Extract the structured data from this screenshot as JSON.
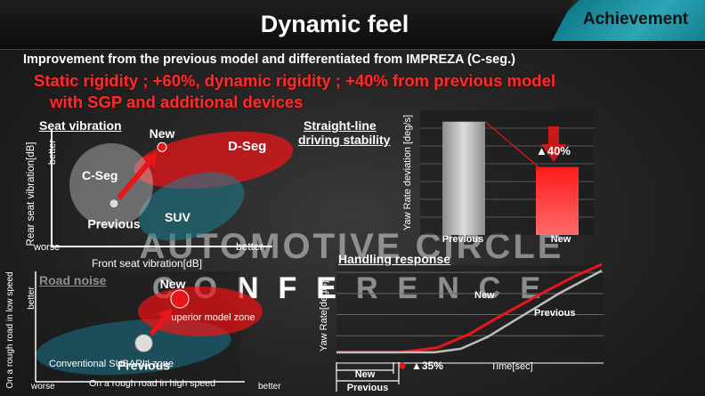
{
  "header": {
    "title": "Dynamic feel",
    "badge": "Achievement",
    "subtitle": "Improvement from the previous model  and differentiated from IMPREZA (C-seg.)",
    "highlight_line1": "Static rigidity ; +60%, dynamic rigidity ; +40% from previous model",
    "highlight_line2": "with SGP and additional devices"
  },
  "watermark": {
    "line1": "AUTOMOTIVE CIRCLE",
    "line2": "CONFERENCE"
  },
  "colors": {
    "new": "#e8161a",
    "previous": "#bdbdbd",
    "accent": "#1b9aaa"
  },
  "chart_data": [
    {
      "type": "scatter",
      "title": "Seat vibration",
      "xlabel": "Front seat vibration[dB]",
      "ylabel": "Rear seat vibration[dB]",
      "x_low_label": "worse",
      "x_high_label": "better",
      "y_high_label": "better",
      "regions": [
        "C-Seg",
        "D-Seg",
        "SUV"
      ],
      "points": [
        {
          "label": "Previous",
          "x": 0.35,
          "y": 0.38
        },
        {
          "label": "New",
          "x": 0.62,
          "y": 0.88
        }
      ]
    },
    {
      "type": "bar",
      "title": "Straight-line driving stability",
      "ylabel": "Yaw Rate deviation [deg/s]",
      "categories": [
        "Previous",
        "New"
      ],
      "values": [
        100,
        60
      ],
      "ylim": [
        0,
        110
      ],
      "annotation": "▲40%",
      "grid": true
    },
    {
      "type": "scatter",
      "title": "Road noise",
      "xlabel": "On a rough road in high speed",
      "ylabel": "On a rough road in low speed",
      "x_low_label": "worse",
      "x_high_label": "better",
      "y_high_label": "better",
      "regions": [
        "Superior model zone",
        "Conventional SUBARU zone"
      ],
      "points": [
        {
          "label": "Previous",
          "x": 0.45,
          "y": 0.35
        },
        {
          "label": "New",
          "x": 0.6,
          "y": 0.75
        }
      ]
    },
    {
      "type": "line",
      "title": "Handling response",
      "xlabel": "Time[sec]",
      "ylabel": "Yaw Rate[deg/s]",
      "annotation": "▲35%",
      "delay_labels": [
        "New",
        "Previous"
      ],
      "grid": true,
      "series": [
        {
          "name": "New",
          "x": [
            0,
            0.24,
            0.38,
            0.5,
            0.6,
            0.7,
            0.8,
            0.9,
            1.0
          ],
          "y": [
            0.05,
            0.05,
            0.1,
            0.25,
            0.42,
            0.58,
            0.74,
            0.89,
            1.02
          ]
        },
        {
          "name": "Previous",
          "x": [
            0,
            0.37,
            0.47,
            0.57,
            0.66,
            0.75,
            0.84,
            0.93,
            1.0
          ],
          "y": [
            0.05,
            0.05,
            0.09,
            0.22,
            0.38,
            0.54,
            0.7,
            0.84,
            0.95
          ]
        }
      ]
    }
  ]
}
